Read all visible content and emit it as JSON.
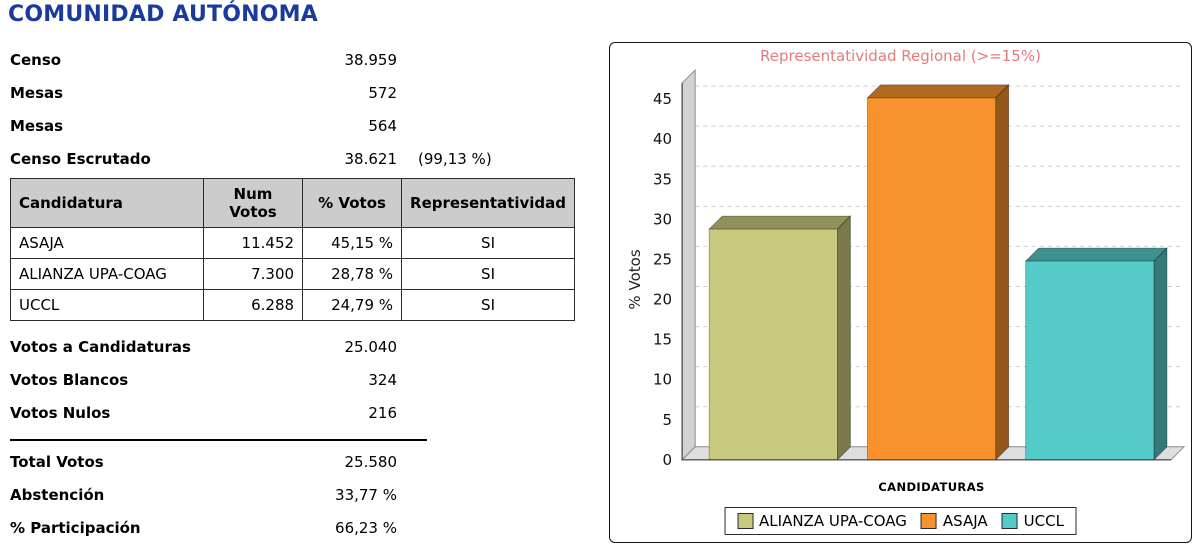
{
  "page": {
    "title": "COMUNIDAD AUTÓNOMA"
  },
  "colors": {
    "page_title": "#1a3a9e",
    "table_header_bg": "#cccccc"
  },
  "summary_top": {
    "rows": [
      {
        "label": "Censo",
        "value": "38.959",
        "extra": ""
      },
      {
        "label": "Mesas",
        "value": "572",
        "extra": ""
      },
      {
        "label": "Mesas",
        "value": "564",
        "extra": ""
      },
      {
        "label": "Censo Escrutado",
        "value": "38.621",
        "extra": "(99,13 %)"
      }
    ]
  },
  "table": {
    "headers": [
      "Candidatura",
      "Num Votos",
      "% Votos",
      "Representatividad"
    ],
    "rows": [
      {
        "candidatura": "ASAJA",
        "num_votos": "11.452",
        "pct_votos": "45,15 %",
        "representatividad": "SI"
      },
      {
        "candidatura": "ALIANZA UPA-COAG",
        "num_votos": "7.300",
        "pct_votos": "28,78 %",
        "representatividad": "SI"
      },
      {
        "candidatura": "UCCL",
        "num_votos": "6.288",
        "pct_votos": "24,79 %",
        "representatividad": "SI"
      }
    ]
  },
  "summary_mid": {
    "rows": [
      {
        "label": "Votos a Candidaturas",
        "value": "25.040"
      },
      {
        "label": "Votos Blancos",
        "value": "324"
      },
      {
        "label": "Votos Nulos",
        "value": "216"
      }
    ]
  },
  "summary_bottom": {
    "rows": [
      {
        "label": "Total Votos",
        "value": "25.580"
      },
      {
        "label": "Abstención",
        "value": "33,77 %"
      },
      {
        "label": "% Participación",
        "value": "66,23 %"
      }
    ]
  },
  "chart": {
    "title": "Representatividad Regional (>=15%)",
    "x_axis_label": "CANDIDATURAS",
    "y_axis_label": "% Votos"
  },
  "chart_data": {
    "type": "bar",
    "title": "Representatividad Regional (>=15%)",
    "title_color": "#e87a7a",
    "categories": [
      "ALIANZA UPA-COAG",
      "ASAJA",
      "UCCL"
    ],
    "values": [
      28.78,
      45.15,
      24.79
    ],
    "xlabel": "CANDIDATURAS",
    "ylabel": "% Votos",
    "ylim": [
      0,
      45
    ],
    "yticks": [
      0,
      5,
      10,
      15,
      20,
      25,
      30,
      35,
      40,
      45
    ],
    "bar_colors": [
      "#c9c97e",
      "#f7922d",
      "#55cbc9"
    ],
    "legend": [
      "ALIANZA UPA-COAG",
      "ASAJA",
      "UCCL"
    ],
    "legend_position": "bottom",
    "grid": true,
    "effect_3d": true
  }
}
